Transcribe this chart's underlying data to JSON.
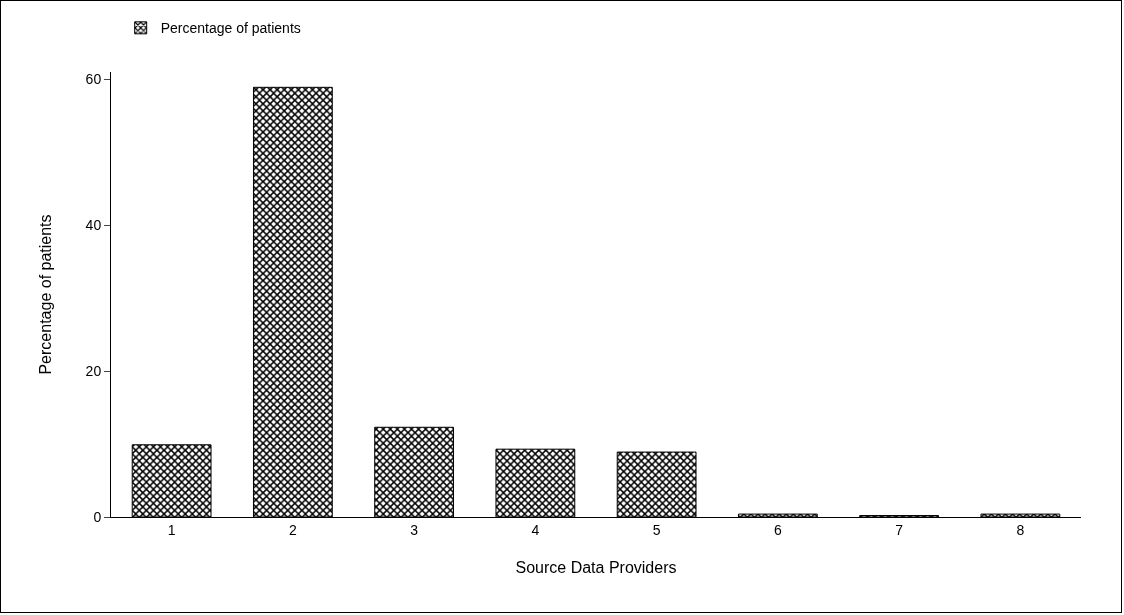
{
  "chart_data": {
    "type": "bar",
    "xlabel": "Source Data Providers",
    "ylabel": "Percentage of patients",
    "categories": [
      "1",
      "2",
      "3",
      "4",
      "5",
      "6",
      "7",
      "8"
    ],
    "series": [
      {
        "name": "Percentage of patients",
        "color": "#000000",
        "values": [
          9.9,
          58.9,
          12.3,
          9.3,
          8.9,
          0.4,
          0.2,
          0.4
        ]
      }
    ],
    "ylim": [
      0,
      61
    ],
    "yticks": [
      0,
      20,
      40,
      60
    ],
    "grid": false,
    "legend": "top left"
  }
}
